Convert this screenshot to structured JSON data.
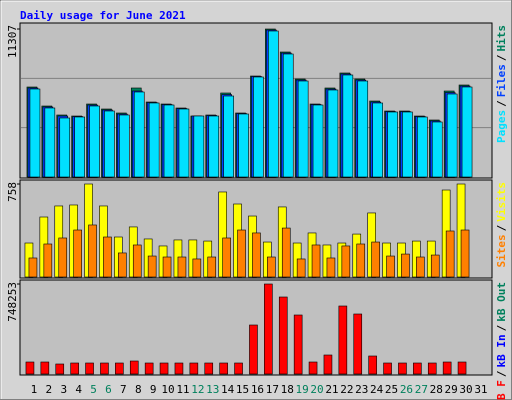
{
  "chart_data": {
    "type": "bar",
    "title": "Daily usage for June 2021",
    "title_color": "#0000ff",
    "categories": [
      "1",
      "2",
      "3",
      "4",
      "5",
      "6",
      "7",
      "8",
      "9",
      "10",
      "11",
      "12",
      "13",
      "14",
      "15",
      "16",
      "17",
      "18",
      "19",
      "20",
      "21",
      "22",
      "23",
      "24",
      "25",
      "26",
      "27",
      "28",
      "29",
      "30",
      "31"
    ],
    "weekend_indices": [
      4,
      5,
      11,
      12,
      18,
      19,
      25,
      26
    ],
    "weekday_color": "#000000",
    "weekend_color": "#00805c",
    "legend_separator": "/",
    "panels": [
      {
        "ylim": [
          0,
          11307
        ],
        "yticks": [
          11307
        ],
        "grid": true,
        "series": [
          {
            "name": "Hits",
            "color": "#00805c",
            "values": [
              6876,
              5424,
              4737,
              4660,
              5577,
              5195,
              4890,
              6800,
              5730,
              5577,
              5272,
              4660,
              4737,
              6418,
              4890,
              7716,
              11307,
              9550,
              7487,
              5577,
              6800,
              7946,
              7487,
              5806,
              5042,
              5042,
              4660,
              4355,
              6570,
              7029,
              null
            ]
          },
          {
            "name": "Files",
            "color": "#0040ff",
            "values": [
              6800,
              5350,
              4660,
              4620,
              5500,
              5120,
              4810,
              6570,
              5690,
              5540,
              5230,
              4660,
              4700,
              6300,
              4850,
              7680,
              11230,
              9470,
              7410,
              5540,
              6720,
              7870,
              7410,
              5730,
              5000,
              5000,
              4620,
              4280,
              6450,
              6950,
              null
            ]
          },
          {
            "name": "Pages",
            "color": "#00e0ff",
            "values": [
              6723,
              5272,
              4508,
              4584,
              5424,
              5042,
              4737,
              6494,
              5654,
              5501,
              5195,
              4660,
              4660,
              6188,
              4813,
              7640,
              11154,
              9397,
              7334,
              5501,
              6647,
              7793,
              7334,
              5654,
              4966,
              4966,
              4584,
              4202,
              6341,
              6876,
              null
            ]
          }
        ],
        "legend": []
      },
      {
        "ylim": [
          0,
          758
        ],
        "yticks": [
          758
        ],
        "grid": false,
        "series": [
          {
            "name": "Visits",
            "color": "#ffff00",
            "values": [
              277,
              489,
              579,
              587,
              758,
              579,
              326,
              408,
              310,
              253,
              302,
              302,
              293,
              693,
              595,
              497,
              285,
              571,
              277,
              359,
              261,
              277,
              350,
              522,
              277,
              277,
              293,
              293,
              709,
              758,
              null
            ]
          },
          {
            "name": "Sites",
            "color": "#ff8000",
            "values": [
              155,
              269,
              318,
              383,
              424,
              326,
              196,
              261,
              171,
              163,
              163,
              147,
              163,
              318,
              383,
              359,
              163,
              399,
              147,
              261,
              155,
              253,
              269,
              285,
              171,
              187,
              163,
              179,
              375,
              383,
              null
            ]
          }
        ],
        "legend": []
      },
      {
        "ylim": [
          0,
          748253
        ],
        "yticks": [
          748253
        ],
        "grid": false,
        "series": [
          {
            "name": "kB F",
            "color": "#ff0000",
            "values": [
              99768,
              99768,
              83140,
              91454,
              91454,
              91454,
              91454,
              108082,
              91454,
              91454,
              91454,
              91454,
              91454,
              91454,
              91454,
              407386,
              748253,
              640178,
              490526,
              99768,
              157966,
              565352,
              498840,
              149652,
              91454,
              91454,
              91454,
              91454,
              99768,
              99768,
              null
            ]
          }
        ],
        "legend": [
          {
            "name": "kB In",
            "color": "#0000ff"
          },
          {
            "name": "kB Out",
            "color": "#00805c"
          }
        ]
      }
    ]
  }
}
